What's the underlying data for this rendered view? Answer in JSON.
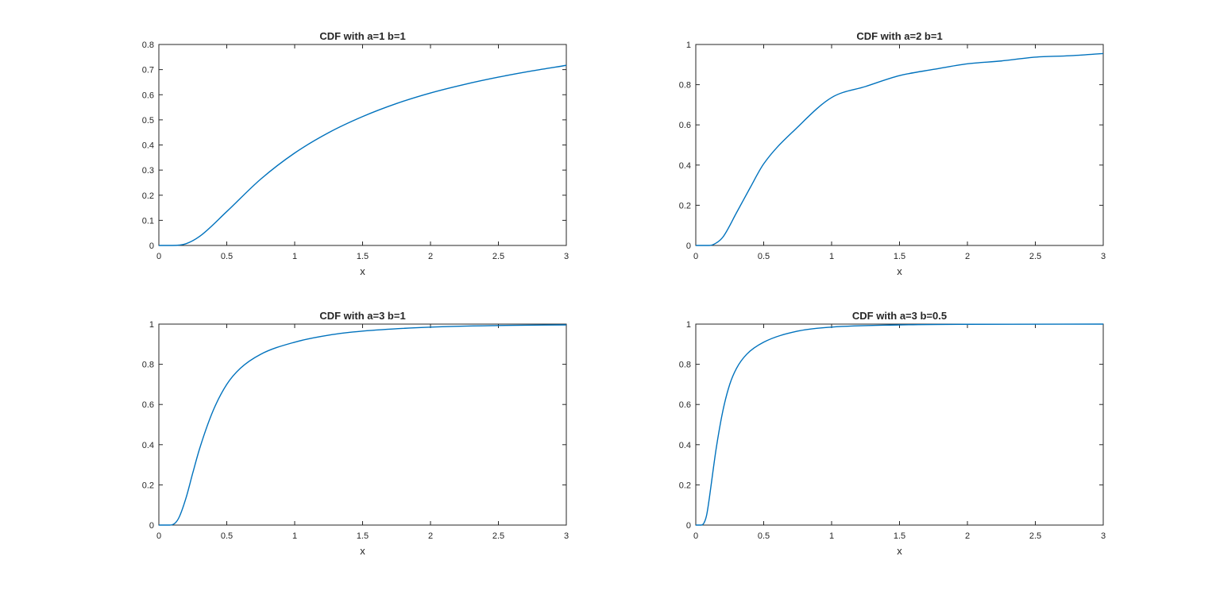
{
  "figure": {
    "background": "#ffffff",
    "line_color": "#0072bd"
  },
  "chart_data": [
    {
      "type": "line",
      "title": "CDF with a=1 b=1",
      "xlabel": "x",
      "ylabel": "",
      "xlim": [
        0,
        3
      ],
      "ylim": [
        0,
        0.8
      ],
      "xticks": [
        0,
        0.5,
        1,
        1.5,
        2,
        2.5,
        3
      ],
      "xtick_labels": [
        "0",
        "0.5",
        "1",
        "1.5",
        "2",
        "2.5",
        "3"
      ],
      "yticks": [
        0,
        0.1,
        0.2,
        0.3,
        0.4,
        0.5,
        0.6,
        0.7,
        0.8
      ],
      "ytick_labels": [
        "0",
        "0.1",
        "0.2",
        "0.3",
        "0.4",
        "0.5",
        "0.6",
        "0.7",
        "0.8"
      ],
      "grid": false,
      "series": [
        {
          "x": [
            0,
            0.1,
            0.2,
            0.3,
            0.5,
            0.75,
            1,
            1.25,
            1.5,
            1.75,
            2,
            2.25,
            2.5,
            2.75,
            3
          ],
          "y": [
            0,
            0,
            0.007,
            0.036,
            0.135,
            0.264,
            0.368,
            0.449,
            0.513,
            0.565,
            0.607,
            0.641,
            0.67,
            0.695,
            0.717
          ]
        }
      ]
    },
    {
      "type": "line",
      "title": "CDF with a=2 b=1",
      "xlabel": "x",
      "ylabel": "",
      "xlim": [
        0,
        3
      ],
      "ylim": [
        0,
        1
      ],
      "xticks": [
        0,
        0.5,
        1,
        1.5,
        2,
        2.5,
        3
      ],
      "xtick_labels": [
        "0",
        "0.5",
        "1",
        "1.5",
        "2",
        "2.5",
        "3"
      ],
      "yticks": [
        0,
        0.2,
        0.4,
        0.6,
        0.8,
        1
      ],
      "ytick_labels": [
        "0",
        "0.2",
        "0.4",
        "0.6",
        "0.8",
        "1"
      ],
      "grid": false,
      "series": [
        {
          "x": [
            0,
            0.1,
            0.15,
            0.2,
            0.3,
            0.4,
            0.5,
            0.75,
            1,
            1.25,
            1.5,
            1.75,
            2,
            2.25,
            2.5,
            2.75,
            3
          ],
          "y": [
            0,
            0,
            0.012,
            0.042,
            0.163,
            0.287,
            0.406,
            0.589,
            0.736,
            0.791,
            0.845,
            0.876,
            0.904,
            0.918,
            0.937,
            0.944,
            0.955
          ]
        }
      ]
    },
    {
      "type": "line",
      "title": "CDF with a=3 b=1",
      "xlabel": "x",
      "ylabel": "",
      "xlim": [
        0,
        3
      ],
      "ylim": [
        0,
        1
      ],
      "xticks": [
        0,
        0.5,
        1,
        1.5,
        2,
        2.5,
        3
      ],
      "xtick_labels": [
        "0",
        "0.5",
        "1",
        "1.5",
        "2",
        "2.5",
        "3"
      ],
      "yticks": [
        0,
        0.2,
        0.4,
        0.6,
        0.8,
        1
      ],
      "ytick_labels": [
        "0",
        "0.2",
        "0.4",
        "0.6",
        "0.8",
        "1"
      ],
      "grid": false,
      "series": [
        {
          "x": [
            0,
            0.08,
            0.12,
            0.15,
            0.2,
            0.25,
            0.3,
            0.4,
            0.5,
            0.6,
            0.75,
            1,
            1.25,
            1.5,
            2,
            2.5,
            3
          ],
          "y": [
            0,
            0,
            0.01,
            0.04,
            0.135,
            0.26,
            0.38,
            0.57,
            0.7,
            0.78,
            0.85,
            0.91,
            0.945,
            0.965,
            0.985,
            0.993,
            0.996
          ]
        }
      ]
    },
    {
      "type": "line",
      "title": "CDF with a=3 b=0.5",
      "xlabel": "x",
      "ylabel": "",
      "xlim": [
        0,
        3
      ],
      "ylim": [
        0,
        1
      ],
      "xticks": [
        0,
        0.5,
        1,
        1.5,
        2,
        2.5,
        3
      ],
      "xtick_labels": [
        "0",
        "0.5",
        "1",
        "1.5",
        "2",
        "2.5",
        "3"
      ],
      "yticks": [
        0,
        0.2,
        0.4,
        0.6,
        0.8,
        1
      ],
      "ytick_labels": [
        "0",
        "0.2",
        "0.4",
        "0.6",
        "0.8",
        "1"
      ],
      "grid": false,
      "series": [
        {
          "x": [
            0,
            0.04,
            0.06,
            0.08,
            0.1,
            0.125,
            0.15,
            0.2,
            0.25,
            0.3,
            0.375,
            0.5,
            0.75,
            1,
            1.5,
            2,
            3
          ],
          "y": [
            0,
            0,
            0.01,
            0.05,
            0.135,
            0.26,
            0.38,
            0.57,
            0.7,
            0.78,
            0.85,
            0.91,
            0.965,
            0.985,
            0.996,
            0.999,
            1.0
          ]
        }
      ]
    }
  ]
}
